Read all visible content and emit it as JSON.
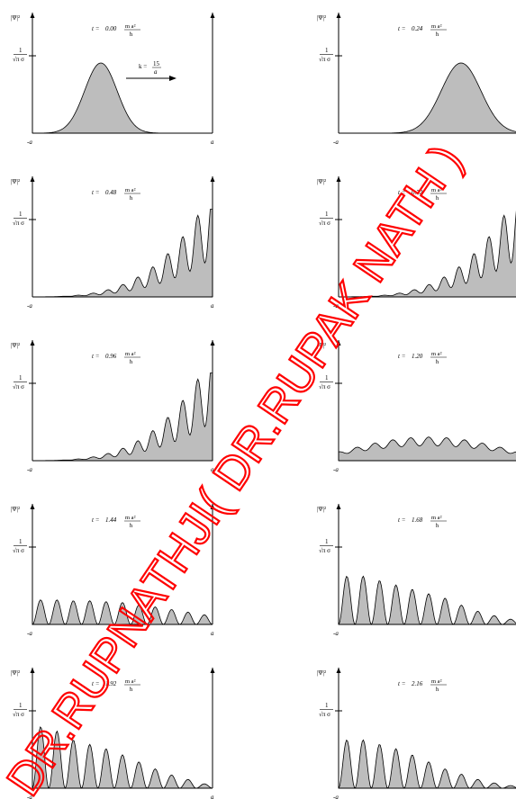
{
  "shared": {
    "y_axis_label": "|Ψ|²",
    "y_tick_label_num": "1",
    "y_tick_label_den": "√π σ",
    "x_left_label": "-a",
    "x_right_label": "a",
    "time_prefix": "t =",
    "time_unit_num": "m a²",
    "time_unit_den": "ħ",
    "fill_color": "#bdbdbd",
    "line_color": "#000000"
  },
  "momentum_label": {
    "prefix": "k =",
    "num": "15",
    "den": "a"
  },
  "watermark": {
    "text": "DR.RUPNATHJI( DR.RUPAK NATH )",
    "color": "#ff0000"
  },
  "panels": [
    {
      "t_label": "0.00",
      "shape": "packet",
      "center": -0.12,
      "width": 0.09,
      "show_k": true
    },
    {
      "t_label": "0.24",
      "shape": "packet",
      "center": 0.18,
      "width": 0.11,
      "show_k": false
    },
    {
      "t_label": "0.48",
      "shape": "wall_fringes",
      "peaks": [
        0.28,
        0.43,
        0.6,
        0.7,
        0.77,
        0.86
      ]
    },
    {
      "t_label": "0.72",
      "shape": "wall_fringes",
      "peaks": [
        0.03,
        0.08,
        0.2,
        0.4,
        0.6,
        0.8,
        1.0
      ]
    },
    {
      "t_label": "0.96",
      "shape": "wall_fringes",
      "peaks": [
        0.05,
        0.12,
        0.22,
        0.33,
        0.45,
        0.58,
        0.72
      ]
    },
    {
      "t_label": "1.20",
      "shape": "spread",
      "level": 0.25
    },
    {
      "t_label": "1.44",
      "shape": "comb_left",
      "peaks": [
        0.28,
        0.28,
        0.27,
        0.27,
        0.26,
        0.25,
        0.22,
        0.2,
        0.17,
        0.14,
        0.11
      ]
    },
    {
      "t_label": "1.68",
      "shape": "comb_left",
      "peaks": [
        0.55,
        0.55,
        0.5,
        0.45,
        0.4,
        0.35,
        0.3,
        0.22,
        0.15,
        0.1,
        0.06
      ]
    },
    {
      "t_label": "1.92",
      "shape": "comb_left",
      "peaks": [
        0.7,
        0.65,
        0.55,
        0.5,
        0.45,
        0.38,
        0.3,
        0.22,
        0.15,
        0.1,
        0.05
      ]
    },
    {
      "t_label": "2.16",
      "shape": "comb_left",
      "peaks": [
        0.55,
        0.55,
        0.5,
        0.45,
        0.38,
        0.3,
        0.22,
        0.16,
        0.1,
        0.06,
        0.03
      ]
    }
  ]
}
